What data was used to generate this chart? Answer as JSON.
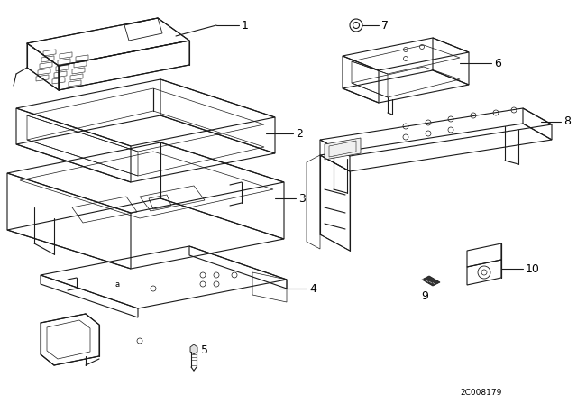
{
  "background_color": "#ffffff",
  "line_color": "#1a1a1a",
  "watermark": "2C008179",
  "fig_width": 6.4,
  "fig_height": 4.48,
  "dpi": 100
}
